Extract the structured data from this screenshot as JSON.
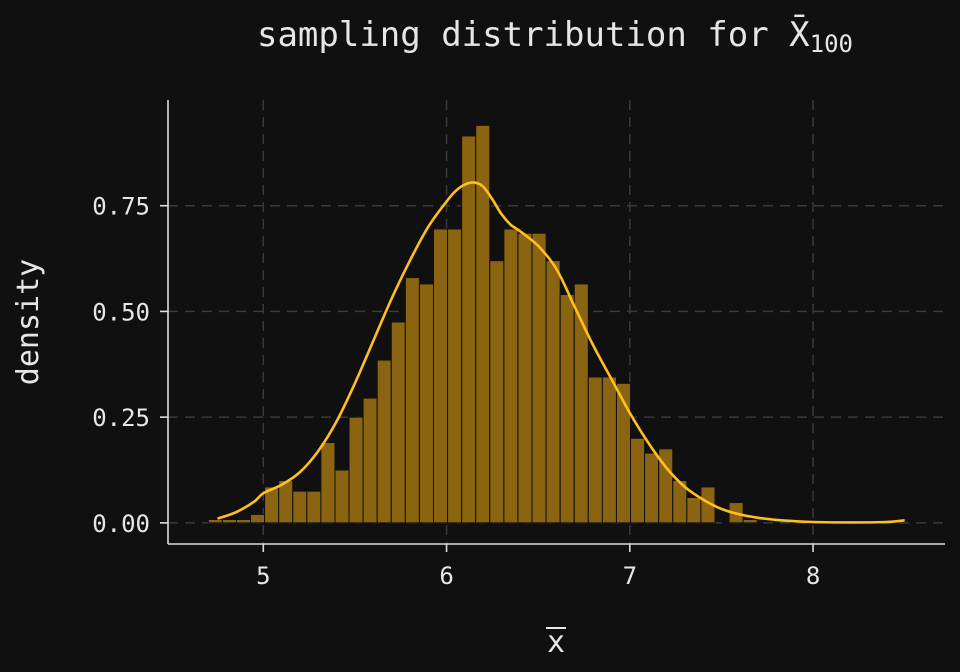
{
  "chart_data": {
    "type": "bar",
    "title": "sampling distribution for X̄",
    "title_subscript": "100",
    "xlabel": "x",
    "ylabel": "density",
    "xlim": [
      4.48,
      8.72
    ],
    "ylim": [
      -0.05,
      1.0
    ],
    "xticks": [
      5,
      6,
      7,
      8
    ],
    "yticks": [
      0.0,
      0.25,
      0.5,
      0.75
    ],
    "ytick_labels": [
      "0.00",
      "0.25",
      "0.50",
      "0.75"
    ],
    "grid": true,
    "bar_color": "#8a6410",
    "kde_color": "#ffbf1f",
    "histogram": {
      "bin_start": 4.7,
      "bin_width": 0.0768,
      "density": [
        0.008,
        0.008,
        0.008,
        0.02,
        0.085,
        0.1,
        0.075,
        0.075,
        0.19,
        0.125,
        0.25,
        0.295,
        0.385,
        0.475,
        0.58,
        0.565,
        0.695,
        0.695,
        0.915,
        0.94,
        0.62,
        0.695,
        0.685,
        0.685,
        0.62,
        0.54,
        0.565,
        0.345,
        0.345,
        0.33,
        0.2,
        0.165,
        0.175,
        0.1,
        0.06,
        0.085,
        0,
        0.048,
        0.008
      ]
    },
    "kde": {
      "x": [
        4.75,
        4.85,
        4.95,
        5.0,
        5.1,
        5.2,
        5.3,
        5.4,
        5.5,
        5.6,
        5.7,
        5.8,
        5.9,
        6.0,
        6.05,
        6.1,
        6.15,
        6.2,
        6.25,
        6.3,
        6.35,
        6.4,
        6.5,
        6.6,
        6.7,
        6.8,
        6.9,
        7.0,
        7.1,
        7.2,
        7.3,
        7.4,
        7.5,
        7.6,
        7.7,
        7.8,
        7.9,
        8.0,
        8.2,
        8.4,
        8.5
      ],
      "y": [
        0.01,
        0.025,
        0.05,
        0.07,
        0.09,
        0.12,
        0.17,
        0.24,
        0.33,
        0.43,
        0.53,
        0.62,
        0.7,
        0.76,
        0.785,
        0.8,
        0.805,
        0.795,
        0.765,
        0.73,
        0.705,
        0.69,
        0.655,
        0.6,
        0.51,
        0.42,
        0.34,
        0.26,
        0.19,
        0.13,
        0.085,
        0.055,
        0.033,
        0.02,
        0.012,
        0.007,
        0.004,
        0.002,
        0.001,
        0.002,
        0.006
      ]
    }
  }
}
